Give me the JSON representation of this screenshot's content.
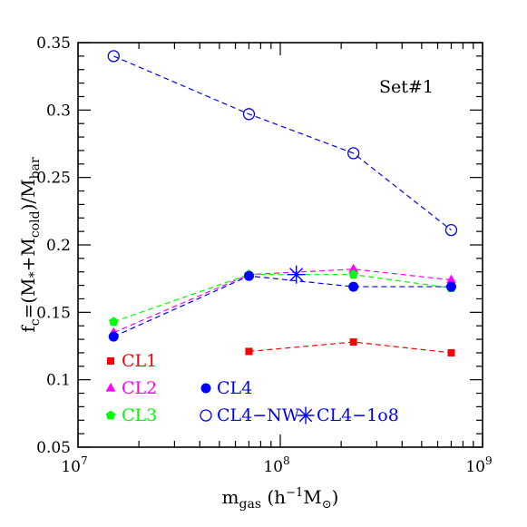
{
  "chart_data": {
    "type": "scatter",
    "annotation": "Set#1",
    "xlabel": {
      "main": "m",
      "sub": "gas",
      "rest": "(h",
      "sup": "−1",
      "rest2": "M",
      "sun": "⊙",
      "close": ")"
    },
    "ylabel": {
      "text": "f = (M + M ) / M",
      "parts": [
        "f",
        "c",
        "=(M",
        "*",
        "+M",
        "cold",
        ")/M",
        "bar"
      ]
    },
    "x_scale": "log",
    "xlim": [
      10000000,
      1000000000
    ],
    "ylim": [
      0.05,
      0.35
    ],
    "x_ticks": [
      {
        "value": 10000000,
        "base": "10",
        "exp": "7"
      },
      {
        "value": 100000000,
        "base": "10",
        "exp": "8"
      },
      {
        "value": 1000000000,
        "base": "10",
        "exp": "9"
      }
    ],
    "y_ticks": [
      {
        "value": 0.05,
        "label": "0.05"
      },
      {
        "value": 0.1,
        "label": "0.1"
      },
      {
        "value": 0.15,
        "label": "0.15"
      },
      {
        "value": 0.2,
        "label": "0.2"
      },
      {
        "value": 0.25,
        "label": "0.25"
      },
      {
        "value": 0.3,
        "label": "0.3"
      },
      {
        "value": 0.35,
        "label": "0.35"
      }
    ],
    "y_minor_step": 0.01,
    "grid": false,
    "legend_placement": "bottom-left",
    "series": [
      {
        "name": "CL1",
        "color": "#ff0000",
        "marker": "square",
        "line": "dashed",
        "x": [
          70000000,
          230000000,
          700000000
        ],
        "y": [
          0.121,
          0.128,
          0.12
        ]
      },
      {
        "name": "CL2",
        "color": "#ff00ff",
        "marker": "triangle",
        "line": "dashed",
        "x": [
          15000000,
          70000000,
          230000000,
          700000000
        ],
        "y": [
          0.135,
          0.178,
          0.182,
          0.174
        ]
      },
      {
        "name": "CL3",
        "color": "#00ff00",
        "marker": "pentagon",
        "line": "dashed",
        "x": [
          15000000,
          70000000,
          230000000,
          700000000
        ],
        "y": [
          0.143,
          0.178,
          0.178,
          0.168
        ]
      },
      {
        "name": "CL4",
        "color": "#0000ff",
        "marker": "circle-filled",
        "line": "dashed",
        "x": [
          15000000,
          70000000,
          230000000,
          700000000
        ],
        "y": [
          0.132,
          0.177,
          0.169,
          0.169
        ]
      },
      {
        "name": "CL4−NW",
        "color": "#0000ff",
        "marker": "circle-open",
        "line": "dashed",
        "x": [
          15000000,
          70000000,
          230000000,
          700000000
        ],
        "y": [
          0.34,
          0.297,
          0.268,
          0.211
        ]
      },
      {
        "name": "CL4−1o8",
        "color": "#0000ff",
        "marker": "asterisk",
        "line": "none",
        "x": [
          120000000
        ],
        "y": [
          0.178
        ]
      }
    ]
  }
}
